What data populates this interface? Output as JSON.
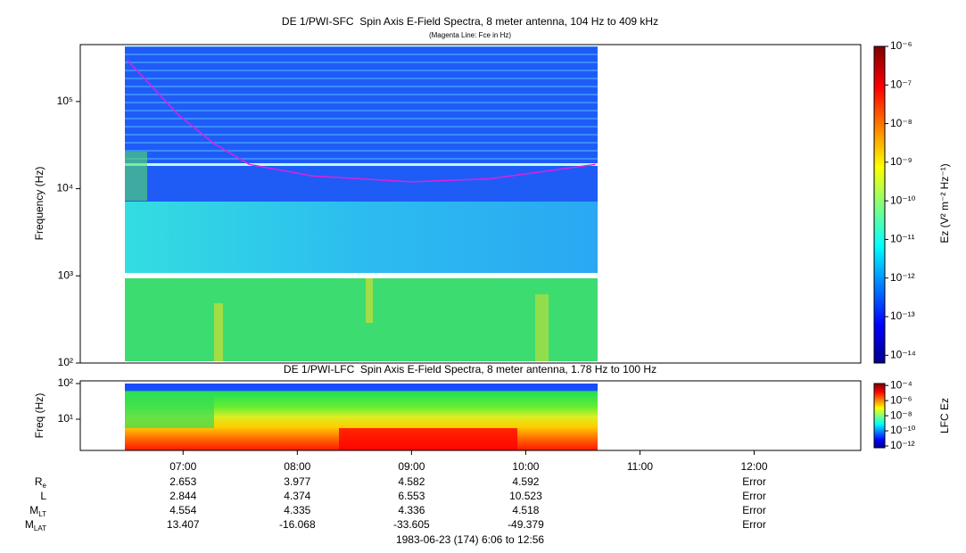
{
  "chart_data": [
    {
      "type": "spectrogram",
      "title": "DE 1/PWI-SFC  Spin Axis E-Field Spectra, 8 meter antenna, 104 Hz to 409 kHz",
      "subtitle": "(Magenta Line: Fce in Hz)",
      "y_label": "Frequency (Hz)",
      "log_y": true,
      "xlim": [
        6.1,
        12.933
      ],
      "ylim": [
        100,
        450000
      ],
      "yticks": [
        {
          "value": 100,
          "label": "10²"
        },
        {
          "value": 1000,
          "label": "10³"
        },
        {
          "value": 10000,
          "label": "10⁴"
        },
        {
          "value": 100000,
          "label": "10⁵"
        }
      ],
      "x": [
        6.51,
        6.96,
        7.27,
        7.58,
        8.13,
        9.0,
        9.69,
        10.61
      ],
      "series": [
        {
          "color": "#e020e0",
          "values": [
            300000,
            70000,
            33000,
            19000,
            14000,
            12000,
            13000,
            19000
          ]
        }
      ],
      "colorbar": {
        "label": "Ez (V² m⁻² Hz⁻¹)",
        "colormap": "jet",
        "zlim": [
          6.3e-15,
          1e-06
        ],
        "ticks": [
          {
            "value": 1e-06,
            "label": "10⁻⁶"
          },
          {
            "value": 1e-07,
            "label": "10⁻⁷"
          },
          {
            "value": 1e-08,
            "label": "10⁻⁸"
          },
          {
            "value": 1e-09,
            "label": "10⁻⁹"
          },
          {
            "value": 1e-10,
            "label": "10⁻¹⁰"
          },
          {
            "value": 1e-11,
            "label": "10⁻¹¹"
          },
          {
            "value": 1e-12,
            "label": "10⁻¹²"
          },
          {
            "value": 1e-13,
            "label": "10⁻¹³"
          },
          {
            "value": 1e-14,
            "label": "10⁻¹⁴"
          }
        ]
      }
    },
    {
      "type": "spectrogram",
      "title": "DE 1/PWI-LFC  Spin Axis E-Field Spectra, 8 meter antenna, 1.78 Hz to 100 Hz",
      "y_label": "Freq (Hz)",
      "log_y": true,
      "xlim": [
        6.1,
        12.933
      ],
      "ylim": [
        1.33,
        119
      ],
      "yticks": [
        {
          "value": 100,
          "label": "10²"
        },
        {
          "value": 10,
          "label": "10¹"
        }
      ],
      "xticks": [
        {
          "value": 7,
          "label": "07:00"
        },
        {
          "value": 8,
          "label": "08:00"
        },
        {
          "value": 9,
          "label": "09:00"
        },
        {
          "value": 10,
          "label": "10:00"
        },
        {
          "value": 11,
          "label": "11:00"
        },
        {
          "value": 12,
          "label": "12:00"
        }
      ],
      "colorbar": {
        "label": "LFC Ez",
        "colormap": "jet",
        "zlim": [
          5.8e-13,
          0.00018
        ],
        "ticks": [
          {
            "value": 0.0001,
            "label": "10⁻⁴"
          },
          {
            "value": 1e-06,
            "label": "10⁻⁶"
          },
          {
            "value": 1e-08,
            "label": "10⁻⁸"
          },
          {
            "value": 1e-10,
            "label": "10⁻¹⁰"
          },
          {
            "value": 1e-12,
            "label": "10⁻¹²"
          }
        ]
      }
    }
  ],
  "ephemeris": {
    "rows": [
      {
        "label": "R",
        "sub": "e",
        "values": [
          2.653,
          3.977,
          4.582,
          4.592,
          null,
          "Error"
        ]
      },
      {
        "label": "L",
        "values": [
          2.844,
          4.374,
          6.553,
          10.523,
          null,
          "Error"
        ]
      },
      {
        "label": "M",
        "sub": "LT",
        "values": [
          4.554,
          4.335,
          4.336,
          4.518,
          null,
          "Error"
        ]
      },
      {
        "label": "M",
        "sub": "LAT",
        "values": [
          13.407,
          -16.068,
          -33.605,
          -49.379,
          null,
          "Error"
        ]
      }
    ]
  },
  "footer": "1983-06-23 (174) 6:06 to 12:56"
}
